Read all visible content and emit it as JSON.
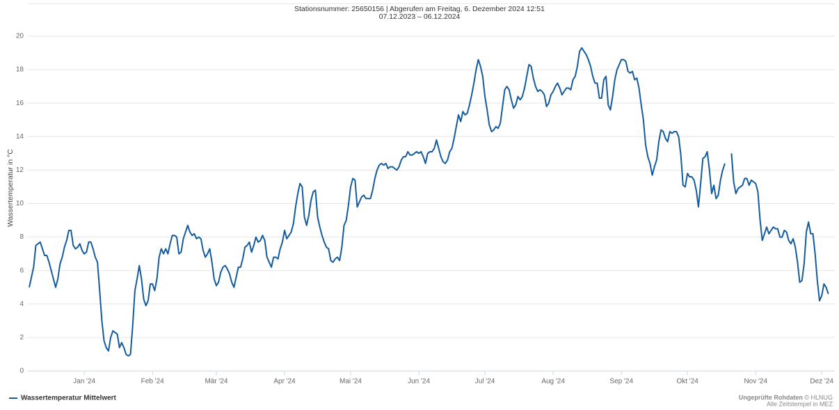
{
  "chart_data": {
    "type": "line",
    "title": "Stationsnummer: 25650156 | Abgerufen am Freitag, 6. Dezember 2024 12:51",
    "subtitle": "07.12.2023 – 06.12.2024",
    "y_label": "Wassertemperatur in °C",
    "credits": {
      "emphasis": "Ungeprüfte Rohdaten",
      "text": "© HLNUG",
      "note": "Alle Zeitstempel in MEZ"
    },
    "xlim": [
      "2023-12-07",
      "2024-12-06"
    ],
    "xticks": [
      {
        "value": "2024-01-01",
        "label": "Jan '24"
      },
      {
        "value": "2024-02-01",
        "label": "Feb '24"
      },
      {
        "value": "2024-03-01",
        "label": "Mär '24"
      },
      {
        "value": "2024-04-01",
        "label": "Apr '24"
      },
      {
        "value": "2024-05-01",
        "label": "Mai '24"
      },
      {
        "value": "2024-06-01",
        "label": "Jun '24"
      },
      {
        "value": "2024-07-01",
        "label": "Jul '24"
      },
      {
        "value": "2024-08-01",
        "label": "Aug '24"
      },
      {
        "value": "2024-09-01",
        "label": "Sep '24"
      },
      {
        "value": "2024-10-01",
        "label": "Okt '24"
      },
      {
        "value": "2024-11-01",
        "label": "Nov '24"
      },
      {
        "value": "2024-12-01",
        "label": "Dez '24"
      }
    ],
    "ylim": [
      0,
      20
    ],
    "yticks": [
      0,
      2,
      4,
      6,
      8,
      10,
      12,
      14,
      16,
      18,
      20
    ],
    "grid": true,
    "legend": "bottom-left",
    "x": [
      "2023-12-07",
      "2023-12-08",
      "2023-12-09",
      "2023-12-10",
      "2023-12-11",
      "2023-12-12",
      "2023-12-13",
      "2023-12-14",
      "2023-12-15",
      "2023-12-16",
      "2023-12-17",
      "2023-12-18",
      "2023-12-19",
      "2023-12-20",
      "2023-12-21",
      "2023-12-22",
      "2023-12-23",
      "2023-12-24",
      "2023-12-25",
      "2023-12-26",
      "2023-12-27",
      "2023-12-28",
      "2023-12-29",
      "2023-12-30",
      "2023-12-31",
      "2024-01-01",
      "2024-01-02",
      "2024-01-03",
      "2024-01-04",
      "2024-01-05",
      "2024-01-06",
      "2024-01-07",
      "2024-01-08",
      "2024-01-09",
      "2024-01-10",
      "2024-01-11",
      "2024-01-12",
      "2024-01-13",
      "2024-01-14",
      "2024-01-15",
      "2024-01-16",
      "2024-01-17",
      "2024-01-18",
      "2024-01-19",
      "2024-01-20",
      "2024-01-21",
      "2024-01-22",
      "2024-01-23",
      "2024-01-24",
      "2024-01-25",
      "2024-01-26",
      "2024-01-27",
      "2024-01-28",
      "2024-01-29",
      "2024-01-30",
      "2024-01-31",
      "2024-02-01",
      "2024-02-02",
      "2024-02-03",
      "2024-02-04",
      "2024-02-05",
      "2024-02-06",
      "2024-02-07",
      "2024-02-08",
      "2024-02-09",
      "2024-02-10",
      "2024-02-11",
      "2024-02-12",
      "2024-02-13",
      "2024-02-14",
      "2024-02-15",
      "2024-02-16",
      "2024-02-17",
      "2024-02-18",
      "2024-02-19",
      "2024-02-20",
      "2024-02-21",
      "2024-02-22",
      "2024-02-23",
      "2024-02-24",
      "2024-02-25",
      "2024-02-26",
      "2024-02-27",
      "2024-02-28",
      "2024-02-29",
      "2024-03-01",
      "2024-03-02",
      "2024-03-03",
      "2024-03-04",
      "2024-03-05",
      "2024-03-06",
      "2024-03-07",
      "2024-03-08",
      "2024-03-09",
      "2024-03-10",
      "2024-03-11",
      "2024-03-12",
      "2024-03-13",
      "2024-03-14",
      "2024-03-15",
      "2024-03-16",
      "2024-03-17",
      "2024-03-18",
      "2024-03-19",
      "2024-03-20",
      "2024-03-21",
      "2024-03-22",
      "2024-03-23",
      "2024-03-24",
      "2024-03-25",
      "2024-03-26",
      "2024-03-27",
      "2024-03-28",
      "2024-03-29",
      "2024-03-30",
      "2024-03-31",
      "2024-04-01",
      "2024-04-02",
      "2024-04-03",
      "2024-04-04",
      "2024-04-05",
      "2024-04-06",
      "2024-04-07",
      "2024-04-08",
      "2024-04-09",
      "2024-04-10",
      "2024-04-11",
      "2024-04-12",
      "2024-04-13",
      "2024-04-14",
      "2024-04-15",
      "2024-04-16",
      "2024-04-17",
      "2024-04-18",
      "2024-04-19",
      "2024-04-20",
      "2024-04-21",
      "2024-04-22",
      "2024-04-23",
      "2024-04-24",
      "2024-04-25",
      "2024-04-26",
      "2024-04-27",
      "2024-04-28",
      "2024-04-29",
      "2024-04-30",
      "2024-05-01",
      "2024-05-02",
      "2024-05-03",
      "2024-05-04",
      "2024-05-05",
      "2024-05-06",
      "2024-05-07",
      "2024-05-08",
      "2024-05-09",
      "2024-05-10",
      "2024-05-11",
      "2024-05-12",
      "2024-05-13",
      "2024-05-14",
      "2024-05-15",
      "2024-05-16",
      "2024-05-17",
      "2024-05-18",
      "2024-05-19",
      "2024-05-20",
      "2024-05-21",
      "2024-05-22",
      "2024-05-23",
      "2024-05-24",
      "2024-05-25",
      "2024-05-26",
      "2024-05-27",
      "2024-05-28",
      "2024-05-29",
      "2024-05-30",
      "2024-05-31",
      "2024-06-01",
      "2024-06-02",
      "2024-06-03",
      "2024-06-04",
      "2024-06-05",
      "2024-06-06",
      "2024-06-07",
      "2024-06-08",
      "2024-06-09",
      "2024-06-10",
      "2024-06-11",
      "2024-06-12",
      "2024-06-13",
      "2024-06-14",
      "2024-06-15",
      "2024-06-16",
      "2024-06-17",
      "2024-06-18",
      "2024-06-19",
      "2024-06-20",
      "2024-06-21",
      "2024-06-22",
      "2024-06-23",
      "2024-06-24",
      "2024-06-25",
      "2024-06-26",
      "2024-06-27",
      "2024-06-28",
      "2024-06-29",
      "2024-06-30",
      "2024-07-01",
      "2024-07-02",
      "2024-07-03",
      "2024-07-04",
      "2024-07-05",
      "2024-07-06",
      "2024-07-07",
      "2024-07-08",
      "2024-07-09",
      "2024-07-10",
      "2024-07-11",
      "2024-07-12",
      "2024-07-13",
      "2024-07-14",
      "2024-07-15",
      "2024-07-16",
      "2024-07-17",
      "2024-07-18",
      "2024-07-19",
      "2024-07-20",
      "2024-07-21",
      "2024-07-22",
      "2024-07-23",
      "2024-07-24",
      "2024-07-25",
      "2024-07-26",
      "2024-07-27",
      "2024-07-28",
      "2024-07-29",
      "2024-07-30",
      "2024-07-31",
      "2024-08-01",
      "2024-08-02",
      "2024-08-03",
      "2024-08-04",
      "2024-08-05",
      "2024-08-06",
      "2024-08-07",
      "2024-08-08",
      "2024-08-09",
      "2024-08-10",
      "2024-08-11",
      "2024-08-12",
      "2024-08-13",
      "2024-08-14",
      "2024-08-15",
      "2024-08-16",
      "2024-08-17",
      "2024-08-18",
      "2024-08-19",
      "2024-08-20",
      "2024-08-21",
      "2024-08-22",
      "2024-08-23",
      "2024-08-24",
      "2024-08-25",
      "2024-08-26",
      "2024-08-27",
      "2024-08-28",
      "2024-08-29",
      "2024-08-30",
      "2024-08-31",
      "2024-09-01",
      "2024-09-02",
      "2024-09-03",
      "2024-09-04",
      "2024-09-05",
      "2024-09-06",
      "2024-09-07",
      "2024-09-08",
      "2024-09-09",
      "2024-09-10",
      "2024-09-11",
      "2024-09-12",
      "2024-09-13",
      "2024-09-14",
      "2024-09-15",
      "2024-09-16",
      "2024-09-17",
      "2024-09-18",
      "2024-09-19",
      "2024-09-20",
      "2024-09-21",
      "2024-09-22",
      "2024-09-23",
      "2024-09-24",
      "2024-09-25",
      "2024-09-26",
      "2024-09-27",
      "2024-09-28",
      "2024-09-29",
      "2024-09-30",
      "2024-10-01",
      "2024-10-02",
      "2024-10-03",
      "2024-10-04",
      "2024-10-05",
      "2024-10-06",
      "2024-10-07",
      "2024-10-08",
      "2024-10-09",
      "2024-10-10",
      "2024-10-11",
      "2024-10-12",
      "2024-10-13",
      "2024-10-14",
      "2024-10-15",
      "2024-10-16",
      "2024-10-17",
      "2024-10-18",
      "2024-10-19",
      "2024-10-20",
      "2024-10-21",
      "2024-10-22",
      "2024-10-23",
      "2024-10-24",
      "2024-10-25",
      "2024-10-26",
      "2024-10-27",
      "2024-10-28",
      "2024-10-29",
      "2024-10-30",
      "2024-10-31",
      "2024-11-01",
      "2024-11-02",
      "2024-11-03",
      "2024-11-04",
      "2024-11-05",
      "2024-11-06",
      "2024-11-07",
      "2024-11-08",
      "2024-11-09",
      "2024-11-10",
      "2024-11-11",
      "2024-11-12",
      "2024-11-13",
      "2024-11-14",
      "2024-11-15",
      "2024-11-16",
      "2024-11-17",
      "2024-11-18",
      "2024-11-19",
      "2024-11-20",
      "2024-11-21",
      "2024-11-22",
      "2024-11-23",
      "2024-11-24",
      "2024-11-25",
      "2024-11-26",
      "2024-11-27",
      "2024-11-28",
      "2024-11-29",
      "2024-11-30",
      "2024-12-01",
      "2024-12-02",
      "2024-12-03",
      "2024-12-04"
    ],
    "series": [
      {
        "name": "Wassertemperatur Mittelwert",
        "color": "#135b9c",
        "values": [
          5.0,
          5.6,
          6.2,
          7.5,
          7.6,
          7.7,
          7.3,
          6.9,
          6.9,
          6.5,
          6.0,
          5.5,
          5.0,
          5.5,
          6.4,
          6.8,
          7.4,
          7.8,
          8.4,
          8.4,
          7.5,
          7.3,
          7.4,
          7.6,
          7.2,
          7.0,
          7.1,
          7.7,
          7.7,
          7.3,
          6.8,
          6.5,
          4.8,
          3.0,
          1.8,
          1.4,
          1.2,
          2.0,
          2.4,
          2.3,
          2.2,
          1.4,
          1.7,
          1.4,
          1.0,
          0.9,
          1.0,
          2.7,
          4.8,
          5.5,
          6.3,
          5.5,
          4.3,
          3.9,
          4.2,
          5.2,
          5.2,
          4.8,
          5.5,
          6.8,
          7.3,
          7.0,
          7.3,
          7.0,
          7.6,
          8.1,
          8.1,
          8.0,
          7.0,
          7.1,
          7.9,
          8.3,
          8.7,
          8.3,
          8.1,
          8.2,
          7.9,
          8.0,
          7.9,
          7.2,
          6.8,
          7.0,
          7.3,
          6.5,
          5.5,
          5.1,
          5.3,
          5.9,
          6.2,
          6.3,
          6.1,
          5.8,
          5.3,
          5.0,
          5.6,
          6.2,
          6.2,
          6.7,
          7.4,
          7.5,
          7.7,
          7.1,
          7.5,
          8.0,
          7.7,
          7.8,
          8.1,
          7.8,
          6.8,
          6.5,
          6.2,
          6.8,
          6.8,
          6.7,
          7.3,
          7.7,
          8.4,
          7.9,
          8.1,
          8.3,
          8.8,
          9.8,
          10.6,
          11.2,
          11.0,
          9.2,
          8.7,
          9.3,
          10.2,
          10.7,
          10.8,
          9.2,
          8.6,
          8.1,
          7.7,
          7.4,
          7.3,
          6.6,
          6.5,
          6.7,
          6.8,
          6.6,
          7.4,
          8.7,
          9.0,
          9.9,
          11.0,
          11.5,
          11.4,
          9.8,
          10.1,
          10.4,
          10.5,
          10.3,
          10.3,
          10.3,
          10.8,
          11.5,
          12.0,
          12.3,
          12.4,
          12.3,
          12.4,
          12.1,
          12.2,
          12.2,
          12.1,
          12.0,
          12.2,
          12.6,
          12.8,
          12.8,
          13.1,
          12.9,
          12.9,
          13.0,
          13.1,
          13.0,
          13.1,
          12.8,
          12.4,
          13.0,
          13.1,
          13.1,
          13.3,
          13.8,
          13.3,
          12.8,
          12.5,
          12.4,
          12.6,
          13.1,
          13.3,
          13.9,
          14.6,
          15.3,
          14.9,
          15.5,
          15.3,
          15.4,
          15.9,
          16.5,
          17.2,
          18.0,
          18.6,
          18.2,
          17.6,
          16.4,
          15.6,
          14.7,
          14.3,
          14.4,
          14.6,
          14.5,
          14.8,
          15.8,
          16.8,
          17.0,
          16.8,
          16.2,
          15.7,
          15.9,
          16.4,
          16.2,
          16.4,
          16.9,
          17.6,
          18.3,
          18.2,
          17.5,
          17.0,
          16.7,
          16.8,
          16.7,
          16.5,
          15.8,
          16.0,
          16.5,
          16.7,
          17.0,
          17.2,
          16.9,
          16.5,
          16.7,
          16.9,
          16.9,
          16.8,
          17.4,
          17.6,
          18.2,
          19.1,
          19.3,
          19.1,
          18.9,
          18.6,
          18.2,
          17.6,
          17.2,
          17.2,
          16.3,
          16.3,
          17.4,
          17.6,
          15.9,
          15.6,
          16.4,
          17.4,
          18.0,
          18.3,
          18.6,
          18.6,
          18.5,
          17.9,
          17.8,
          17.9,
          17.4,
          17.5,
          16.9,
          15.9,
          15.0,
          13.5,
          12.8,
          12.4,
          11.7,
          12.2,
          12.6,
          13.7,
          14.4,
          14.3,
          13.9,
          13.7,
          14.3,
          14.2,
          14.3,
          14.3,
          14.0,
          12.9,
          11.1,
          11.0,
          11.8,
          11.6,
          11.6,
          11.4,
          10.8,
          9.8,
          11.2,
          12.7,
          12.8,
          13.1,
          12.0,
          10.6,
          11.1,
          10.3,
          10.5,
          11.4,
          12.0,
          12.4,
          null,
          null,
          13.0,
          11.3,
          10.6,
          10.9,
          11.0,
          11.1,
          11.5,
          11.5,
          11.1,
          11.4,
          11.3,
          11.2,
          10.7,
          9.0,
          7.8,
          8.2,
          8.6,
          8.2,
          8.4,
          8.6,
          8.5,
          8.5,
          8.0,
          8.0,
          8.4,
          8.3,
          7.8,
          7.6,
          7.9,
          7.4,
          6.5,
          5.3,
          5.4,
          6.4,
          8.3,
          8.9,
          8.2,
          8.2,
          7.0,
          5.4,
          4.2,
          4.5,
          5.2,
          5.0,
          4.6
        ]
      }
    ]
  }
}
